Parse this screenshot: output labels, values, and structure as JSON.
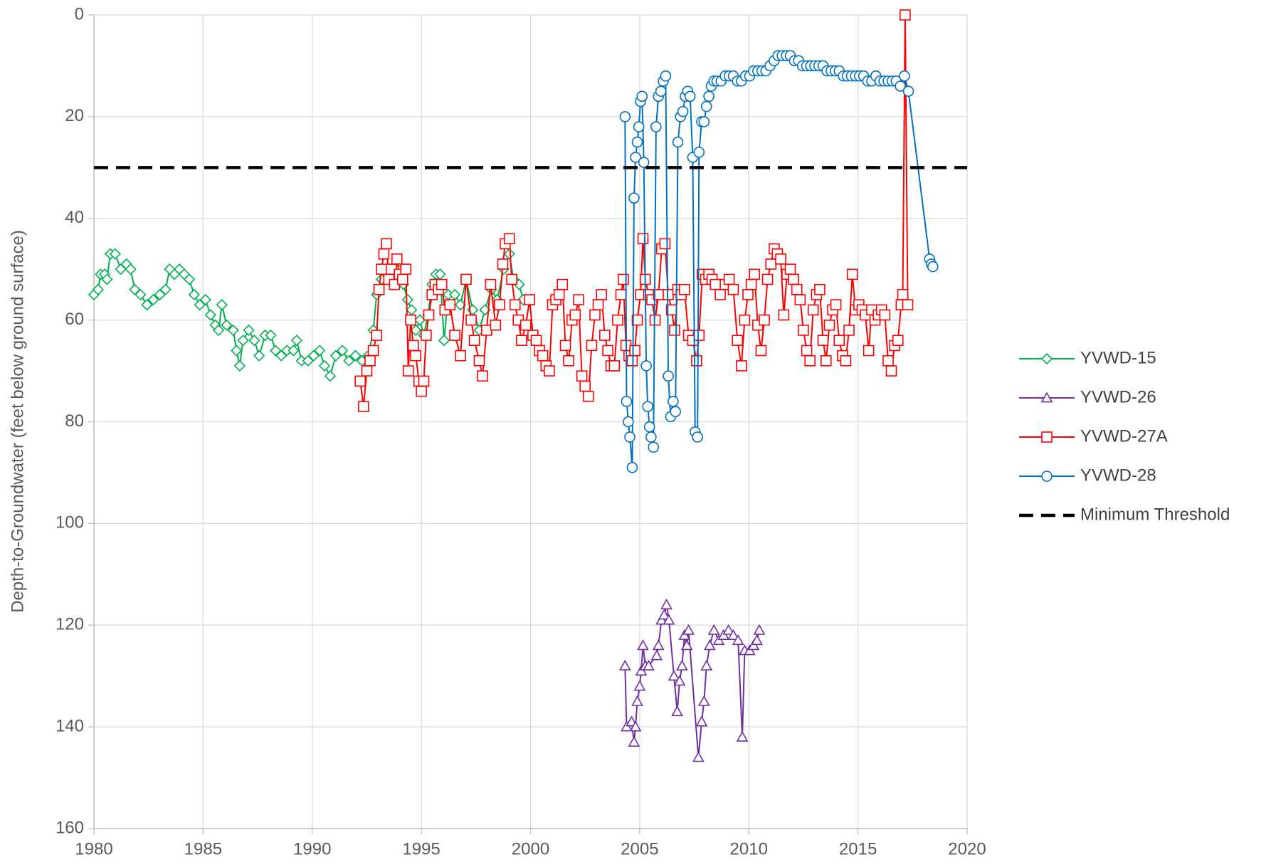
{
  "chart_data": {
    "type": "line",
    "y_label": "Depth-to-Groundwater (feet below ground surface)",
    "xlim": [
      1980,
      2020
    ],
    "xticks": [
      1980,
      1985,
      1990,
      1995,
      2000,
      2005,
      2010,
      2015,
      2020
    ],
    "ylim": [
      0,
      160
    ],
    "yticks": [
      0,
      20,
      40,
      60,
      80,
      100,
      120,
      140,
      160
    ],
    "y_inverted": true,
    "grid": true,
    "legend": "right",
    "series": [
      {
        "name": "YVWD-15",
        "color": "#00b050",
        "marker": "diamond",
        "x": [
          1980.0,
          1980.19,
          1980.3,
          1980.49,
          1980.6,
          1980.75,
          1980.97,
          1981.23,
          1981.49,
          1981.68,
          1981.87,
          1982.13,
          1982.43,
          1982.72,
          1983.02,
          1983.28,
          1983.47,
          1983.69,
          1983.92,
          1984.14,
          1984.37,
          1984.59,
          1984.85,
          1985.11,
          1985.34,
          1985.56,
          1985.71,
          1985.86,
          1986.08,
          1986.38,
          1986.53,
          1986.68,
          1986.83,
          1987.09,
          1987.35,
          1987.57,
          1987.84,
          1988.1,
          1988.32,
          1988.58,
          1988.84,
          1989.14,
          1989.29,
          1989.51,
          1989.81,
          1990.07,
          1990.34,
          1990.56,
          1990.82,
          1991.08,
          1991.38,
          1991.68,
          1991.98,
          1992.28,
          1992.57,
          1992.8,
          1992.95,
          1993.17,
          1993.43,
          1993.69,
          1993.92,
          1994.18,
          1994.37,
          1994.55,
          1994.74,
          1994.93,
          1995.11,
          1995.3,
          1995.49,
          1995.67,
          1995.86,
          1996.04,
          1996.23,
          1996.53,
          1996.79,
          1997.05,
          1997.35,
          1997.65,
          1997.91,
          1998.21,
          1998.47,
          1998.77,
          1999.03,
          1999.22,
          1999.48,
          1999.66
        ],
        "values": [
          55,
          54,
          51,
          51,
          52,
          47,
          47,
          50,
          49,
          50,
          54,
          55,
          57,
          56,
          55,
          54,
          50,
          51,
          50,
          51,
          52,
          55,
          57,
          56,
          59,
          61,
          62,
          57,
          61,
          62,
          66,
          69,
          64,
          62,
          64,
          67,
          63,
          63,
          66,
          67,
          66,
          66,
          64,
          68,
          68,
          67,
          66,
          69,
          71,
          67,
          66,
          68,
          67,
          68,
          67,
          62,
          55,
          52,
          50,
          52,
          50,
          53,
          56,
          58,
          62,
          60,
          63,
          59,
          53,
          51,
          51,
          64,
          55,
          55,
          57,
          52,
          58,
          62,
          58,
          54,
          56,
          50,
          47,
          52,
          53,
          56
        ]
      },
      {
        "name": "YVWD-26",
        "color": "#7030a0",
        "marker": "triangle",
        "x": [
          2004.33,
          2004.4,
          2004.63,
          2004.74,
          2004.81,
          2004.89,
          2005.0,
          2005.07,
          2005.15,
          2005.26,
          2005.41,
          2005.78,
          2005.86,
          2006.0,
          2006.12,
          2006.23,
          2006.34,
          2006.57,
          2006.72,
          2006.83,
          2006.94,
          2007.05,
          2007.16,
          2007.24,
          2007.69,
          2007.84,
          2007.95,
          2008.06,
          2008.21,
          2008.4,
          2008.62,
          2008.84,
          2009.07,
          2009.29,
          2009.51,
          2009.7,
          2009.81,
          2010.04,
          2010.22,
          2010.37,
          2010.48
        ],
        "values": [
          128,
          140,
          139,
          143,
          140,
          135,
          132,
          129,
          124,
          128,
          128,
          126,
          124,
          119,
          118,
          116,
          119,
          130,
          137,
          131,
          128,
          122,
          124,
          121,
          146,
          139,
          135,
          128,
          124,
          121,
          123,
          122,
          121,
          122,
          123,
          142,
          125,
          125,
          124,
          123,
          121
        ]
      },
      {
        "name": "YVWD-27A",
        "color": "#ff0000",
        "marker": "square",
        "x": [
          1992.2,
          1992.35,
          1992.5,
          1992.65,
          1992.8,
          1992.95,
          1993.06,
          1993.17,
          1993.28,
          1993.4,
          1993.51,
          1993.62,
          1993.77,
          1993.88,
          1993.99,
          1994.14,
          1994.29,
          1994.4,
          1994.51,
          1994.63,
          1994.74,
          1994.89,
          1995.0,
          1995.11,
          1995.22,
          1995.34,
          1995.49,
          1995.63,
          1995.78,
          1995.93,
          1996.08,
          1996.31,
          1996.53,
          1996.79,
          1997.05,
          1997.28,
          1997.43,
          1997.65,
          1997.8,
          1997.99,
          1998.17,
          1998.4,
          1998.58,
          1998.73,
          1998.84,
          1999.03,
          1999.14,
          1999.29,
          1999.44,
          1999.59,
          1999.78,
          1999.96,
          2000.11,
          2000.26,
          2000.41,
          2000.56,
          2000.71,
          2000.86,
          2001.01,
          2001.16,
          2001.31,
          2001.46,
          2001.6,
          2001.75,
          2001.9,
          2002.05,
          2002.2,
          2002.35,
          2002.5,
          2002.65,
          2002.8,
          2002.95,
          2003.1,
          2003.25,
          2003.4,
          2003.54,
          2003.69,
          2003.84,
          2003.99,
          2004.14,
          2004.25,
          2004.37,
          2004.51,
          2004.66,
          2004.78,
          2004.89,
          2005.04,
          2005.15,
          2005.26,
          2005.41,
          2005.56,
          2005.71,
          2005.86,
          2006.01,
          2006.16,
          2006.31,
          2006.46,
          2006.6,
          2006.75,
          2006.9,
          2007.05,
          2007.24,
          2007.43,
          2007.61,
          2007.72,
          2007.87,
          2008.02,
          2008.17,
          2008.32,
          2008.47,
          2008.69,
          2008.92,
          2009.1,
          2009.29,
          2009.48,
          2009.66,
          2009.81,
          2009.96,
          2010.11,
          2010.26,
          2010.41,
          2010.56,
          2010.71,
          2010.86,
          2011.01,
          2011.16,
          2011.31,
          2011.46,
          2011.6,
          2011.75,
          2011.9,
          2012.05,
          2012.2,
          2012.35,
          2012.5,
          2012.65,
          2012.8,
          2012.95,
          2013.1,
          2013.25,
          2013.4,
          2013.54,
          2013.69,
          2013.84,
          2013.99,
          2014.14,
          2014.29,
          2014.44,
          2014.59,
          2014.74,
          2014.89,
          2015.04,
          2015.19,
          2015.34,
          2015.49,
          2015.63,
          2015.78,
          2015.93,
          2016.08,
          2016.23,
          2016.38,
          2016.53,
          2016.68,
          2016.83,
          2016.98,
          2017.05,
          2017.16,
          2017.28
        ],
        "values": [
          72,
          77,
          70,
          68,
          66,
          63,
          54,
          50,
          47,
          45,
          52,
          50,
          53,
          48,
          51,
          52,
          50,
          70,
          60,
          65,
          67,
          72,
          74,
          72,
          63,
          59,
          55,
          53,
          54,
          53,
          58,
          57,
          63,
          67,
          52,
          60,
          64,
          68,
          71,
          62,
          53,
          61,
          57,
          49,
          45,
          44,
          52,
          57,
          60,
          64,
          61,
          56,
          63,
          64,
          66,
          67,
          69,
          70,
          57,
          56,
          55,
          53,
          65,
          68,
          60,
          59,
          56,
          71,
          73,
          75,
          65,
          59,
          57,
          55,
          63,
          66,
          69,
          69,
          60,
          55,
          52,
          65,
          67,
          68,
          66,
          60,
          55,
          44,
          52,
          55,
          56,
          60,
          55,
          46,
          45,
          55,
          58,
          62,
          54,
          55,
          54,
          63,
          64,
          68,
          63,
          51,
          52,
          51,
          52,
          53,
          55,
          53,
          52,
          54,
          64,
          69,
          60,
          55,
          53,
          51,
          61,
          66,
          60,
          52,
          49,
          46,
          47,
          48,
          59,
          51,
          50,
          52,
          54,
          56,
          62,
          66,
          68,
          58,
          55,
          54,
          64,
          68,
          61,
          58,
          57,
          64,
          67,
          68,
          62,
          51,
          58,
          57,
          58,
          59,
          66,
          58,
          60,
          59,
          58,
          59,
          68,
          70,
          65,
          64,
          57,
          55,
          0,
          57
        ]
      },
      {
        "name": "YVWD-28",
        "color": "#0070c0",
        "marker": "circle",
        "x": [
          2004.33,
          2004.4,
          2004.48,
          2004.55,
          2004.66,
          2004.74,
          2004.81,
          2004.89,
          2004.96,
          2005.04,
          2005.11,
          2005.19,
          2005.3,
          2005.37,
          2005.45,
          2005.52,
          2005.63,
          2005.75,
          2005.86,
          2005.97,
          2006.08,
          2006.19,
          2006.31,
          2006.42,
          2006.53,
          2006.64,
          2006.75,
          2006.87,
          2006.98,
          2007.09,
          2007.2,
          2007.31,
          2007.43,
          2007.54,
          2007.65,
          2007.72,
          2007.84,
          2007.95,
          2008.06,
          2008.17,
          2008.28,
          2008.4,
          2008.54,
          2008.73,
          2008.92,
          2009.1,
          2009.29,
          2009.48,
          2009.66,
          2009.85,
          2010.04,
          2010.22,
          2010.41,
          2010.6,
          2010.78,
          2010.97,
          2011.16,
          2011.34,
          2011.53,
          2011.72,
          2011.9,
          2012.09,
          2012.28,
          2012.46,
          2012.65,
          2012.84,
          2013.02,
          2013.21,
          2013.4,
          2013.58,
          2013.77,
          2013.96,
          2014.14,
          2014.33,
          2014.51,
          2014.7,
          2014.89,
          2015.07,
          2015.26,
          2015.45,
          2015.63,
          2015.82,
          2016.01,
          2016.19,
          2016.38,
          2016.57,
          2016.75,
          2016.94,
          2017.13,
          2017.31,
          2018.28,
          2018.36,
          2018.43
        ],
        "values": [
          20,
          76,
          80,
          83,
          89,
          36,
          28,
          25,
          22,
          17,
          16,
          29,
          69,
          77,
          81,
          83,
          85,
          22,
          16,
          15,
          13,
          12,
          71,
          79,
          76,
          78,
          25,
          20,
          19,
          16,
          15,
          16,
          28,
          82,
          83,
          27,
          21,
          21,
          18,
          16,
          14,
          13,
          13,
          13,
          12,
          12,
          12,
          13,
          13,
          12,
          12,
          11,
          11,
          11,
          11,
          10,
          9,
          8,
          8,
          8,
          8,
          9,
          9,
          10,
          10,
          10,
          10,
          10,
          10,
          11,
          11,
          11,
          11,
          12,
          12,
          12,
          12,
          12,
          12,
          13,
          13,
          12,
          13,
          13,
          13,
          13,
          13,
          14,
          12,
          15,
          48,
          49,
          49.5
        ]
      },
      {
        "name": "Minimum Threshold",
        "color": "#000000",
        "marker": "none",
        "dash": true,
        "x": [
          1980,
          2020
        ],
        "values": [
          30,
          30
        ]
      }
    ]
  }
}
